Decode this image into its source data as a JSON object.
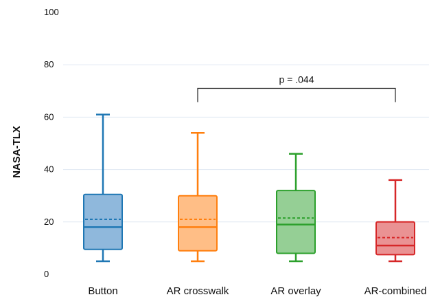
{
  "chart_data": {
    "type": "box",
    "title": "",
    "xlabel": "",
    "ylabel": "NASA-TLX",
    "ylim": [
      0,
      100
    ],
    "yticks": [
      "0",
      "20",
      "40",
      "60",
      "80",
      "100"
    ],
    "grid": true,
    "categories": [
      "Button",
      "AR crosswalk",
      "AR overlay",
      "AR-combined"
    ],
    "boxes": [
      {
        "category": "Button",
        "min": 5,
        "q1": 9.5,
        "median": 18,
        "mean": 21,
        "q3": 30.5,
        "max": 61,
        "color": "#1f77b4",
        "fill": "#8fb8dc"
      },
      {
        "category": "AR crosswalk",
        "min": 5,
        "q1": 9,
        "median": 18,
        "mean": 21,
        "q3": 30,
        "max": 54,
        "color": "#ff7f0e",
        "fill": "#ffbe86"
      },
      {
        "category": "AR overlay",
        "min": 5,
        "q1": 8,
        "median": 19,
        "mean": 21.5,
        "q3": 32,
        "max": 46,
        "color": "#2ca02c",
        "fill": "#95cf95"
      },
      {
        "category": "AR-combined",
        "min": 5,
        "q1": 7.5,
        "median": 11,
        "mean": 14,
        "q3": 20,
        "max": 36,
        "color": "#d62728",
        "fill": "#ea9293"
      }
    ],
    "annotations": [
      {
        "from": "AR crosswalk",
        "to": "AR-combined",
        "y": 71,
        "text": "p = .044"
      }
    ]
  }
}
